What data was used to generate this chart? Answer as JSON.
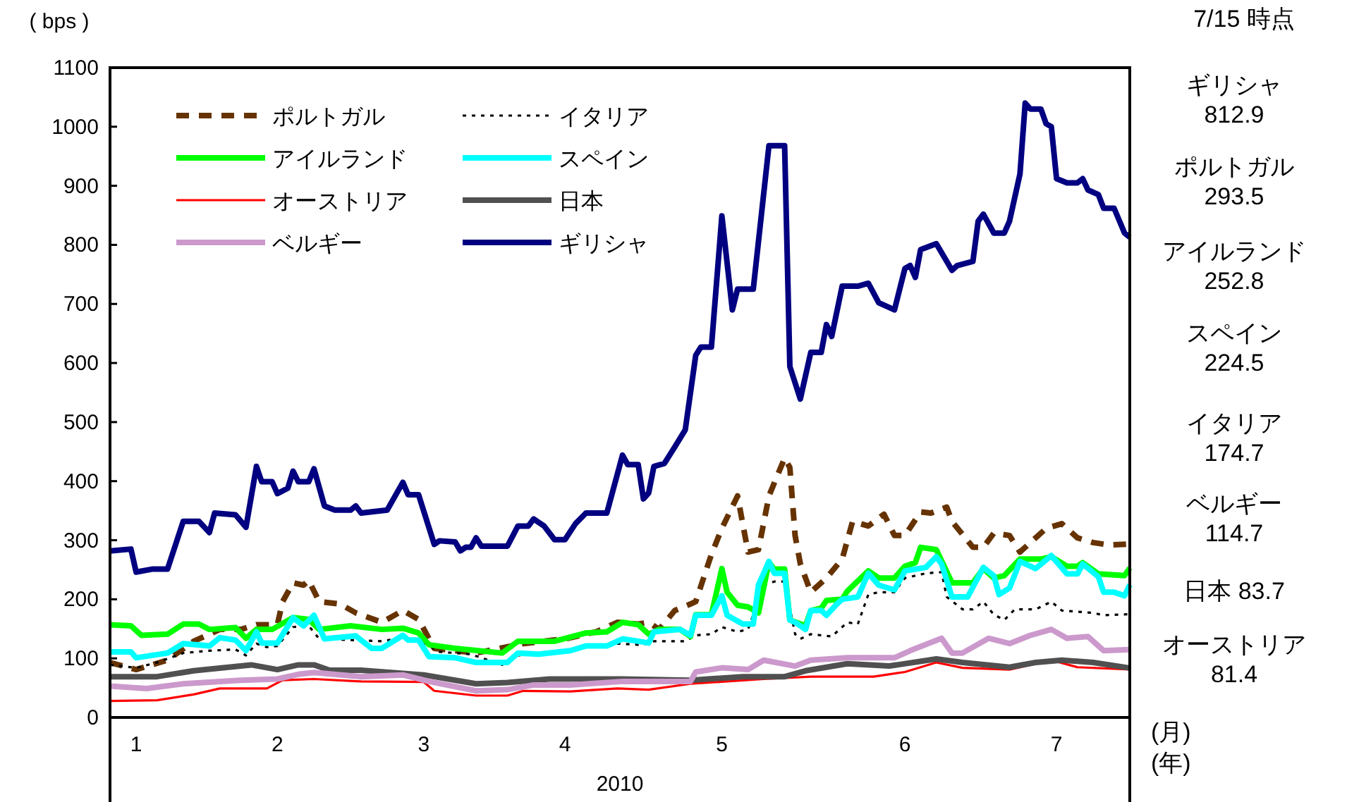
{
  "chart_data": {
    "type": "line",
    "ylabel": "( bps )",
    "xlabel": "2010",
    "xlim": [
      "2010-01-01",
      "2010-07-15"
    ],
    "xticks": [
      {
        "value": "2010-01-06",
        "label": "1"
      },
      {
        "value": "2010-02-02",
        "label": "2"
      },
      {
        "value": "2010-03-02",
        "label": "3"
      },
      {
        "value": "2010-03-29",
        "label": "4"
      },
      {
        "value": "2010-04-28",
        "label": "5"
      },
      {
        "value": "2010-06-02",
        "label": "6"
      },
      {
        "value": "2010-07-01",
        "label": "7"
      }
    ],
    "ylim": [
      0,
      1100
    ],
    "yticks": [
      0,
      100,
      200,
      300,
      400,
      500,
      600,
      700,
      800,
      900,
      1000,
      1100
    ],
    "grid": false,
    "legend": "top left",
    "marker": "none",
    "annotations": [
      "7/15 時点",
      "ギリシャ\n812.9",
      "ポルトガル\n293.5",
      "アイルランド\n252.8",
      "スペイン\n224.5",
      "イタリア\n174.7",
      "ベルギー\n114.7",
      "日本  83.7",
      "オーストリア\n81.4",
      "(月)",
      "(年)"
    ],
    "series": [
      {
        "name": "ポルトガル",
        "color": "#663300",
        "line_style": "dashed",
        "x": [
          "2010-01-01",
          "2010-01-06",
          "2010-01-12",
          "2010-01-17",
          "2010-01-22",
          "2010-01-26",
          "2010-01-29",
          "2010-02-02",
          "2010-02-03",
          "2010-02-05",
          "2010-02-07",
          "2010-02-08",
          "2010-02-10",
          "2010-02-14",
          "2010-02-17",
          "2010-02-22",
          "2010-02-26",
          "2010-03-01",
          "2010-03-04",
          "2010-03-08",
          "2010-03-12",
          "2010-03-21",
          "2010-03-29",
          "2010-04-04",
          "2010-04-08",
          "2010-04-12",
          "2010-04-14",
          "2010-04-16",
          "2010-04-19",
          "2010-04-22",
          "2010-04-23",
          "2010-04-26",
          "2010-04-28",
          "2010-05-01",
          "2010-05-03",
          "2010-05-05",
          "2010-05-07",
          "2010-05-10",
          "2010-05-11",
          "2010-05-12",
          "2010-05-13",
          "2010-05-15",
          "2010-05-18",
          "2010-05-21",
          "2010-05-23",
          "2010-05-26",
          "2010-05-29",
          "2010-05-31",
          "2010-06-02",
          "2010-06-05",
          "2010-06-07",
          "2010-06-10",
          "2010-06-11",
          "2010-06-15",
          "2010-06-17",
          "2010-06-19",
          "2010-06-22",
          "2010-06-24",
          "2010-06-29",
          "2010-07-02",
          "2010-07-05",
          "2010-07-08",
          "2010-07-11",
          "2010-07-15"
        ],
        "values": [
          93,
          81,
          97,
          129,
          149,
          149,
          157,
          157,
          196,
          228,
          224,
          232,
          196,
          192,
          177,
          161,
          181,
          166,
          117,
          113,
          109,
          125,
          133,
          145,
          161,
          158,
          161,
          149,
          181,
          192,
          196,
          276,
          320,
          375,
          280,
          284,
          375,
          439,
          423,
          308,
          260,
          212,
          236,
          268,
          332,
          324,
          344,
          308,
          308,
          348,
          346,
          356,
          332,
          288,
          288,
          312,
          308,
          280,
          320,
          328,
          304,
          296,
          292,
          293.5
        ]
      },
      {
        "name": "イタリア",
        "color": "#000000",
        "line_style": "dotted",
        "x": [
          "2010-01-01",
          "2010-01-06",
          "2010-01-10",
          "2010-01-15",
          "2010-01-20",
          "2010-01-25",
          "2010-01-27",
          "2010-01-29",
          "2010-01-31",
          "2010-02-02",
          "2010-02-05",
          "2010-02-08",
          "2010-02-10",
          "2010-02-22",
          "2010-02-26",
          "2010-03-02",
          "2010-03-05",
          "2010-03-11",
          "2010-03-17",
          "2010-03-20",
          "2010-03-28",
          "2010-04-02",
          "2010-04-08",
          "2010-04-12",
          "2010-04-14",
          "2010-04-15",
          "2010-04-21",
          "2010-04-23",
          "2010-04-26",
          "2010-04-28",
          "2010-05-01",
          "2010-05-03",
          "2010-05-06",
          "2010-05-08",
          "2010-05-10",
          "2010-05-12",
          "2010-05-13",
          "2010-05-15",
          "2010-05-19",
          "2010-05-22",
          "2010-05-24",
          "2010-05-26",
          "2010-05-28",
          "2010-05-31",
          "2010-06-02",
          "2010-06-06",
          "2010-06-09",
          "2010-06-10",
          "2010-06-13",
          "2010-06-15",
          "2010-06-17",
          "2010-06-19",
          "2010-06-21",
          "2010-06-23",
          "2010-06-27",
          "2010-06-30",
          "2010-07-02",
          "2010-07-08",
          "2010-07-10",
          "2010-07-15"
        ],
        "values": [
          89,
          84,
          93,
          109,
          113,
          115,
          105,
          125,
          119,
          121,
          153,
          155,
          133,
          129,
          135,
          126,
          111,
          107,
          89,
          105,
          109,
          119,
          125,
          123,
          125,
          129,
          129,
          139,
          141,
          153,
          145,
          149,
          224,
          230,
          230,
          141,
          133,
          141,
          137,
          161,
          158,
          208,
          212,
          212,
          236,
          244,
          246,
          204,
          183,
          183,
          196,
          174,
          165,
          183,
          183,
          196,
          181,
          177,
          173,
          174.7
        ]
      },
      {
        "name": "アイルランド",
        "color": "#00ff00",
        "line_style": "solid",
        "x": [
          "2010-01-01",
          "2010-01-05",
          "2010-01-07",
          "2010-01-12",
          "2010-01-15",
          "2010-01-18",
          "2010-01-20",
          "2010-01-25",
          "2010-01-27",
          "2010-01-29",
          "2010-02-01",
          "2010-02-05",
          "2010-02-08",
          "2010-02-10",
          "2010-02-16",
          "2010-02-22",
          "2010-02-26",
          "2010-03-01",
          "2010-03-03",
          "2010-03-08",
          "2010-03-17",
          "2010-03-20",
          "2010-03-27",
          "2010-04-02",
          "2010-04-06",
          "2010-04-09",
          "2010-04-12",
          "2010-04-14",
          "2010-04-16",
          "2010-04-20",
          "2010-04-22",
          "2010-04-23",
          "2010-04-26",
          "2010-04-28",
          "2010-04-29",
          "2010-05-01",
          "2010-05-03",
          "2010-05-05",
          "2010-05-07",
          "2010-05-08",
          "2010-05-10",
          "2010-05-11",
          "2010-05-14",
          "2010-05-15",
          "2010-05-17",
          "2010-05-18",
          "2010-05-21",
          "2010-05-22",
          "2010-05-26",
          "2010-05-28",
          "2010-05-31",
          "2010-06-02",
          "2010-06-04",
          "2010-06-05",
          "2010-06-08",
          "2010-06-11",
          "2010-06-15",
          "2010-06-17",
          "2010-06-19",
          "2010-06-21",
          "2010-06-24",
          "2010-06-28",
          "2010-06-30",
          "2010-07-03",
          "2010-07-05",
          "2010-07-06",
          "2010-07-09",
          "2010-07-14",
          "2010-07-15"
        ],
        "values": [
          157,
          155,
          139,
          141,
          158,
          158,
          149,
          152,
          134,
          149,
          149,
          169,
          166,
          149,
          155,
          149,
          151,
          143,
          123,
          117,
          109,
          129,
          129,
          143,
          145,
          161,
          157,
          141,
          149,
          149,
          137,
          174,
          174,
          252,
          212,
          190,
          187,
          177,
          263,
          251,
          251,
          165,
          155,
          181,
          185,
          198,
          200,
          214,
          248,
          236,
          236,
          256,
          262,
          288,
          284,
          228,
          228,
          252,
          236,
          240,
          268,
          268,
          272,
          256,
          256,
          262,
          243,
          240,
          252.8
        ]
      },
      {
        "name": "スペイン",
        "color": "#00ffff",
        "line_style": "solid",
        "x": [
          "2010-01-01",
          "2010-01-05",
          "2010-01-06",
          "2010-01-12",
          "2010-01-15",
          "2010-01-20",
          "2010-01-22",
          "2010-01-25",
          "2010-01-27",
          "2010-01-29",
          "2010-01-30",
          "2010-02-02",
          "2010-02-05",
          "2010-02-07",
          "2010-02-09",
          "2010-02-11",
          "2010-02-17",
          "2010-02-20",
          "2010-02-22",
          "2010-02-26",
          "2010-02-27",
          "2010-03-01",
          "2010-03-03",
          "2010-03-08",
          "2010-03-12",
          "2010-03-18",
          "2010-03-20",
          "2010-03-24",
          "2010-03-30",
          "2010-04-02",
          "2010-04-06",
          "2010-04-09",
          "2010-04-12",
          "2010-04-14",
          "2010-04-15",
          "2010-04-20",
          "2010-04-22",
          "2010-04-23",
          "2010-04-26",
          "2010-04-28",
          "2010-04-29",
          "2010-05-02",
          "2010-05-04",
          "2010-05-05",
          "2010-05-07",
          "2010-05-08",
          "2010-05-10",
          "2010-05-11",
          "2010-05-12",
          "2010-05-14",
          "2010-05-15",
          "2010-05-17",
          "2010-05-18",
          "2010-05-20",
          "2010-05-21",
          "2010-05-24",
          "2010-05-26",
          "2010-05-28",
          "2010-05-31",
          "2010-06-02",
          "2010-06-06",
          "2010-06-08",
          "2010-06-09",
          "2010-06-11",
          "2010-06-14",
          "2010-06-17",
          "2010-06-19",
          "2010-06-20",
          "2010-06-22",
          "2010-06-24",
          "2010-06-27",
          "2010-06-30",
          "2010-07-03",
          "2010-07-05",
          "2010-07-06",
          "2010-07-09",
          "2010-07-10",
          "2010-07-12",
          "2010-07-14",
          "2010-07-15"
        ],
        "values": [
          111,
          111,
          101,
          109,
          125,
          121,
          135,
          131,
          113,
          145,
          126,
          126,
          169,
          155,
          173,
          133,
          138,
          117,
          117,
          139,
          131,
          131,
          103,
          101,
          93,
          93,
          109,
          107,
          113,
          121,
          121,
          133,
          129,
          126,
          145,
          149,
          139,
          173,
          173,
          206,
          173,
          158,
          158,
          224,
          264,
          244,
          244,
          165,
          161,
          149,
          181,
          181,
          173,
          192,
          200,
          204,
          244,
          224,
          216,
          248,
          254,
          272,
          260,
          204,
          204,
          254,
          240,
          208,
          219,
          264,
          252,
          274,
          243,
          243,
          260,
          238,
          212,
          212,
          206,
          224.5
        ]
      },
      {
        "name": "オーストリア",
        "color": "#ff0000",
        "line_style": "solid",
        "x": [
          "2010-01-01",
          "2010-01-10",
          "2010-01-17",
          "2010-01-22",
          "2010-01-31",
          "2010-02-03",
          "2010-02-09",
          "2010-02-18",
          "2010-03-02",
          "2010-03-04",
          "2010-03-12",
          "2010-03-18",
          "2010-03-21",
          "2010-03-30",
          "2010-04-08",
          "2010-04-14",
          "2010-04-22",
          "2010-05-06",
          "2010-05-15",
          "2010-05-27",
          "2010-06-02",
          "2010-06-08",
          "2010-06-13",
          "2010-06-22",
          "2010-06-30",
          "2010-07-05",
          "2010-07-15"
        ],
        "values": [
          28,
          29,
          39,
          49,
          49,
          63,
          65,
          61,
          60,
          45,
          37,
          37,
          45,
          44,
          49,
          47,
          57,
          65,
          69,
          69,
          77,
          93,
          84,
          81,
          97,
          85,
          81.4
        ]
      },
      {
        "name": "日本",
        "color": "#505050",
        "line_style": "solid",
        "x": [
          "2010-01-01",
          "2010-01-10",
          "2010-01-17",
          "2010-01-28",
          "2010-02-02",
          "2010-02-06",
          "2010-02-09",
          "2010-02-12",
          "2010-02-18",
          "2010-03-02",
          "2010-03-12",
          "2010-03-18",
          "2010-03-26",
          "2010-04-09",
          "2010-04-22",
          "2010-05-02",
          "2010-05-10",
          "2010-05-14",
          "2010-05-22",
          "2010-05-30",
          "2010-06-08",
          "2010-06-13",
          "2010-06-22",
          "2010-06-27",
          "2010-07-02",
          "2010-07-08",
          "2010-07-15"
        ],
        "values": [
          69,
          69,
          79,
          89,
          81,
          89,
          89,
          80,
          80,
          72,
          57,
          59,
          65,
          65,
          63,
          69,
          69,
          79,
          91,
          87,
          99,
          93,
          85,
          93,
          97,
          93,
          83.7
        ]
      },
      {
        "name": "ベルギー",
        "color": "#cc99cc",
        "line_style": "solid",
        "x": [
          "2010-01-01",
          "2010-01-08",
          "2010-01-15",
          "2010-01-26",
          "2010-02-02",
          "2010-02-06",
          "2010-02-09",
          "2010-02-18",
          "2010-02-26",
          "2010-03-03",
          "2010-03-12",
          "2010-03-18",
          "2010-03-23",
          "2010-03-30",
          "2010-04-09",
          "2010-04-22",
          "2010-04-23",
          "2010-04-28",
          "2010-05-03",
          "2010-05-06",
          "2010-05-12",
          "2010-05-15",
          "2010-05-22",
          "2010-05-31",
          "2010-06-03",
          "2010-06-09",
          "2010-06-11",
          "2010-06-13",
          "2010-06-18",
          "2010-06-22",
          "2010-06-26",
          "2010-06-30",
          "2010-07-03",
          "2010-07-07",
          "2010-07-10",
          "2010-07-15"
        ],
        "values": [
          53,
          49,
          57,
          63,
          65,
          73,
          76,
          69,
          72,
          61,
          45,
          47,
          55,
          55,
          61,
          61,
          77,
          84,
          81,
          97,
          87,
          97,
          101,
          101,
          113,
          134,
          109,
          109,
          134,
          125,
          139,
          149,
          134,
          137,
          113,
          114.7
        ]
      },
      {
        "name": "ギリシャ",
        "color": "#000080",
        "line_style": "solid",
        "x": [
          "2010-01-01",
          "2010-01-05",
          "2010-01-06",
          "2010-01-09",
          "2010-01-12",
          "2010-01-15",
          "2010-01-18",
          "2010-01-20",
          "2010-01-21",
          "2010-01-25",
          "2010-01-27",
          "2010-01-29",
          "2010-01-30",
          "2010-02-01",
          "2010-02-02",
          "2010-02-04",
          "2010-02-05",
          "2010-02-06",
          "2010-02-08",
          "2010-02-09",
          "2010-02-11",
          "2010-02-13",
          "2010-02-16",
          "2010-02-17",
          "2010-02-18",
          "2010-02-23",
          "2010-02-26",
          "2010-02-27",
          "2010-03-01",
          "2010-03-04",
          "2010-03-05",
          "2010-03-08",
          "2010-03-09",
          "2010-03-10",
          "2010-03-11",
          "2010-03-12",
          "2010-03-13",
          "2010-03-18",
          "2010-03-20",
          "2010-03-22",
          "2010-03-23",
          "2010-03-25",
          "2010-03-27",
          "2010-03-29",
          "2010-03-31",
          "2010-04-02",
          "2010-04-06",
          "2010-04-09",
          "2010-04-10",
          "2010-04-12",
          "2010-04-13",
          "2010-04-14",
          "2010-04-15",
          "2010-04-17",
          "2010-04-19",
          "2010-04-21",
          "2010-04-23",
          "2010-04-24",
          "2010-04-26",
          "2010-04-28",
          "2010-04-30",
          "2010-05-01",
          "2010-05-04",
          "2010-05-07",
          "2010-05-10",
          "2010-05-11",
          "2010-05-13",
          "2010-05-15",
          "2010-05-17",
          "2010-05-18",
          "2010-05-19",
          "2010-05-21",
          "2010-05-24",
          "2010-05-26",
          "2010-05-28",
          "2010-05-31",
          "2010-06-02",
          "2010-06-03",
          "2010-06-04",
          "2010-06-05",
          "2010-06-08",
          "2010-06-11",
          "2010-06-12",
          "2010-06-15",
          "2010-06-16",
          "2010-06-17",
          "2010-06-19",
          "2010-06-21",
          "2010-06-22",
          "2010-06-24",
          "2010-06-25",
          "2010-06-26",
          "2010-06-28",
          "2010-06-29",
          "2010-06-30",
          "2010-07-01",
          "2010-07-03",
          "2010-07-05",
          "2010-07-06",
          "2010-07-07",
          "2010-07-09",
          "2010-07-10",
          "2010-07-12",
          "2010-07-14",
          "2010-07-15"
        ],
        "values": [
          282,
          285,
          246,
          251,
          251,
          332,
          332,
          313,
          346,
          343,
          322,
          425,
          399,
          399,
          379,
          388,
          417,
          399,
          399,
          421,
          358,
          351,
          351,
          358,
          346,
          351,
          398,
          377,
          377,
          293,
          299,
          297,
          282,
          288,
          288,
          304,
          290,
          290,
          324,
          324,
          336,
          324,
          301,
          301,
          328,
          346,
          346,
          444,
          428,
          428,
          370,
          380,
          425,
          430,
          458,
          487,
          613,
          627,
          627,
          849,
          690,
          725,
          725,
          968,
          968,
          594,
          539,
          618,
          618,
          665,
          645,
          730,
          730,
          735,
          702,
          690,
          760,
          765,
          745,
          792,
          802,
          757,
          765,
          772,
          840,
          852,
          820,
          820,
          840,
          920,
          1040,
          1030,
          1030,
          1005,
          1000,
          912,
          905,
          905,
          912,
          893,
          885,
          862,
          862,
          820,
          812.9
        ]
      }
    ]
  }
}
